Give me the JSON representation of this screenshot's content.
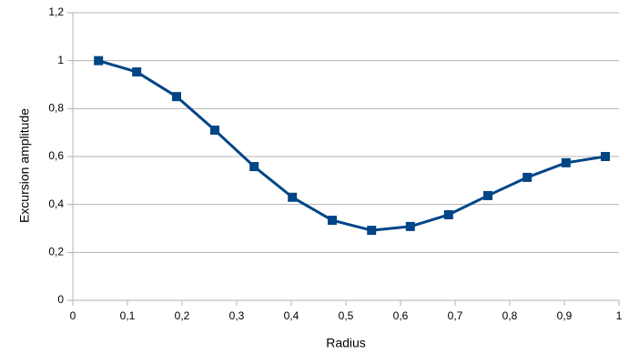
{
  "chart_data": {
    "type": "line",
    "x_label": "Radius",
    "y_label": "Excursion amplitude",
    "x": [
      0.047,
      0.117,
      0.19,
      0.26,
      0.332,
      0.402,
      0.475,
      0.547,
      0.618,
      0.688,
      0.76,
      0.832,
      0.903,
      0.975
    ],
    "series": [
      {
        "color": "#004586",
        "values": [
          1.0,
          0.953,
          0.85,
          0.71,
          0.558,
          0.43,
          0.334,
          0.292,
          0.308,
          0.357,
          0.437,
          0.513,
          0.574,
          0.6
        ]
      }
    ],
    "xlim": [
      0,
      1
    ],
    "xticks": [
      0,
      {
        "value": 0.1,
        "label": "0,1"
      },
      {
        "value": 0.2,
        "label": "0,2"
      },
      {
        "value": 0.3,
        "label": "0,3"
      },
      {
        "value": 0.4,
        "label": "0,4"
      },
      {
        "value": 0.5,
        "label": "0,5"
      },
      {
        "value": 0.6,
        "label": "0,6"
      },
      {
        "value": 0.7,
        "label": "0,7"
      },
      {
        "value": 0.8,
        "label": "0,8"
      },
      {
        "value": 0.9,
        "label": "0,9"
      },
      1
    ],
    "ylim": [
      0,
      1.2
    ],
    "yticks": [
      0,
      {
        "value": 0.2,
        "label": "0,2"
      },
      {
        "value": 0.4,
        "label": "0,4"
      },
      {
        "value": 0.6,
        "label": "0,6"
      },
      {
        "value": 0.8,
        "label": "0,8"
      },
      1,
      {
        "value": 1.2,
        "label": "1,2"
      }
    ],
    "grid": true
  }
}
